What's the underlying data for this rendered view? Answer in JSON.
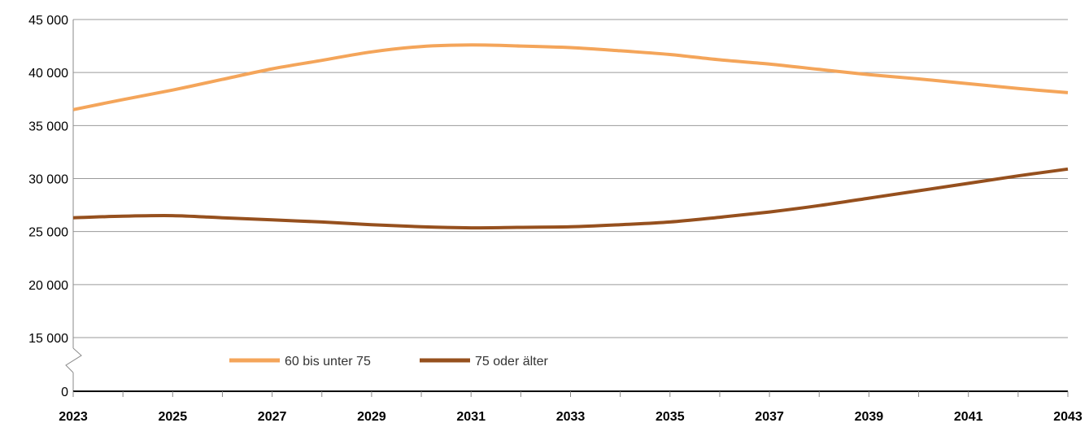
{
  "chart_data": {
    "type": "line",
    "title": "",
    "xlabel": "",
    "ylabel": "",
    "x": [
      2023,
      2024,
      2025,
      2026,
      2027,
      2028,
      2029,
      2030,
      2031,
      2032,
      2033,
      2034,
      2035,
      2036,
      2037,
      2038,
      2039,
      2040,
      2041,
      2042,
      2043
    ],
    "x_tick_labels": [
      "2023",
      "2025",
      "2027",
      "2029",
      "2031",
      "2033",
      "2035",
      "2037",
      "2039",
      "2041",
      "2043"
    ],
    "y_tick_labels": [
      "0",
      "15 000",
      "20 000",
      "25 000",
      "30 000",
      "35 000",
      "40 000",
      "45 000"
    ],
    "y_ticks": [
      0,
      15000,
      20000,
      25000,
      30000,
      35000,
      40000,
      45000
    ],
    "ylim": [
      0,
      45000
    ],
    "y_axis_break": {
      "from": 0,
      "to": 15000
    },
    "grid": true,
    "legend_position": "bottom-left",
    "series": [
      {
        "name": "60 bis unter 75",
        "color": "#f4a55a",
        "values": [
          36500,
          37450,
          38350,
          39350,
          40350,
          41150,
          41950,
          42450,
          42600,
          42500,
          42350,
          42050,
          41700,
          41200,
          40800,
          40300,
          39800,
          39400,
          38950,
          38500,
          38100
        ]
      },
      {
        "name": "75 oder älter",
        "color": "#96501e",
        "values": [
          26300,
          26450,
          26500,
          26300,
          26100,
          25900,
          25650,
          25450,
          25350,
          25400,
          25450,
          25650,
          25900,
          26350,
          26850,
          27450,
          28150,
          28850,
          29550,
          30250,
          30900
        ]
      }
    ]
  }
}
